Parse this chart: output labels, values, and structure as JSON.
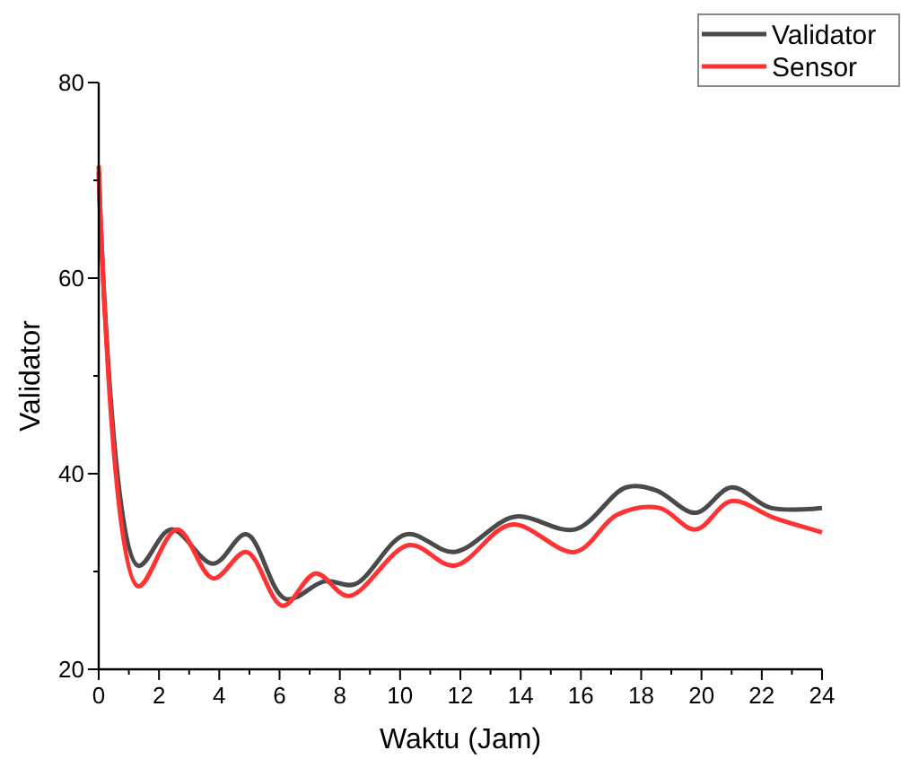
{
  "chart_data": {
    "type": "line",
    "xlabel": "Waktu (Jam)",
    "ylabel": "Validator",
    "xlim": [
      0,
      24
    ],
    "ylim": [
      20,
      80
    ],
    "xticks": [
      0,
      {
        "value": 1,
        "label": null
      },
      2,
      {
        "value": 3,
        "label": null
      },
      4,
      {
        "value": 5,
        "label": null
      },
      6,
      {
        "value": 7,
        "label": null
      },
      8,
      {
        "value": 9,
        "label": null
      },
      10,
      {
        "value": 11,
        "label": null
      },
      12,
      {
        "value": 13,
        "label": null
      },
      14,
      {
        "value": 15,
        "label": null
      },
      16,
      {
        "value": 17,
        "label": null
      },
      18,
      {
        "value": 19,
        "label": null
      },
      20,
      {
        "value": 21,
        "label": null
      },
      22,
      {
        "value": 23,
        "label": null
      },
      24
    ],
    "yticks": [
      20,
      {
        "value": 30,
        "label": null
      },
      40,
      {
        "value": 50,
        "label": null
      },
      60,
      {
        "value": 70,
        "label": null
      },
      80
    ],
    "legend": "top right",
    "grid": false,
    "marker": "none",
    "line_style": "solid",
    "series": [
      {
        "name": "Validator",
        "color": "#4a4a4a",
        "x": [
          0,
          1.3,
          2.4,
          3.8,
          4.9,
          6.2,
          7.5,
          8.5,
          10.2,
          11.8,
          13.8,
          15.8,
          17.5,
          18.5,
          19.8,
          21,
          22.3,
          24
        ],
        "values": [
          70.8,
          30.6,
          34.3,
          30.8,
          33.8,
          27.2,
          29,
          28.7,
          33.8,
          32,
          35.6,
          34.3,
          38.6,
          38.3,
          36,
          38.6,
          36.5,
          36.5
        ]
      },
      {
        "name": "Sensor",
        "color": "#ff3333",
        "x": [
          0,
          1.3,
          2.6,
          3.8,
          4.9,
          6.1,
          7.2,
          8.3,
          10.3,
          11.8,
          13.7,
          15.8,
          17.2,
          18.6,
          19.8,
          21,
          22.4,
          24
        ],
        "values": [
          71.5,
          28.5,
          34.3,
          29.3,
          32,
          26.5,
          29.8,
          27.5,
          32.7,
          30.6,
          34.8,
          32,
          35.8,
          36.5,
          34.3,
          37.2,
          35.5,
          34
        ]
      }
    ]
  }
}
